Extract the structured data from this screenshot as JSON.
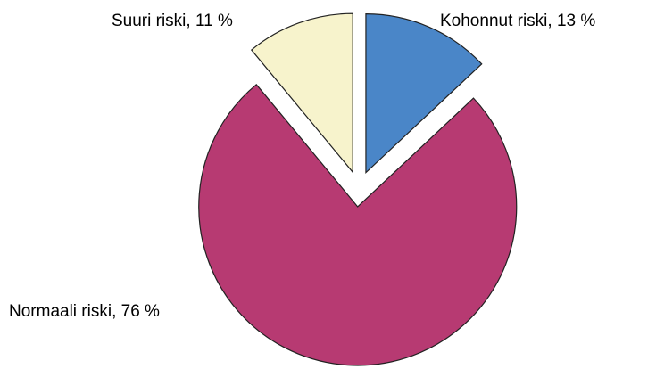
{
  "chart_data": {
    "type": "pie",
    "categories": [
      "Kohonnut riski",
      "Normaali riski",
      "Suuri riski"
    ],
    "values": [
      13,
      76,
      11
    ],
    "value_labels": [
      "Kohonnut riski, 13 %",
      "Normaali riski, 76 %",
      "Suuri riski, 11 %"
    ],
    "colors": [
      "#4a86c8",
      "#b73a72",
      "#f7f3cc"
    ],
    "exploded": true
  }
}
